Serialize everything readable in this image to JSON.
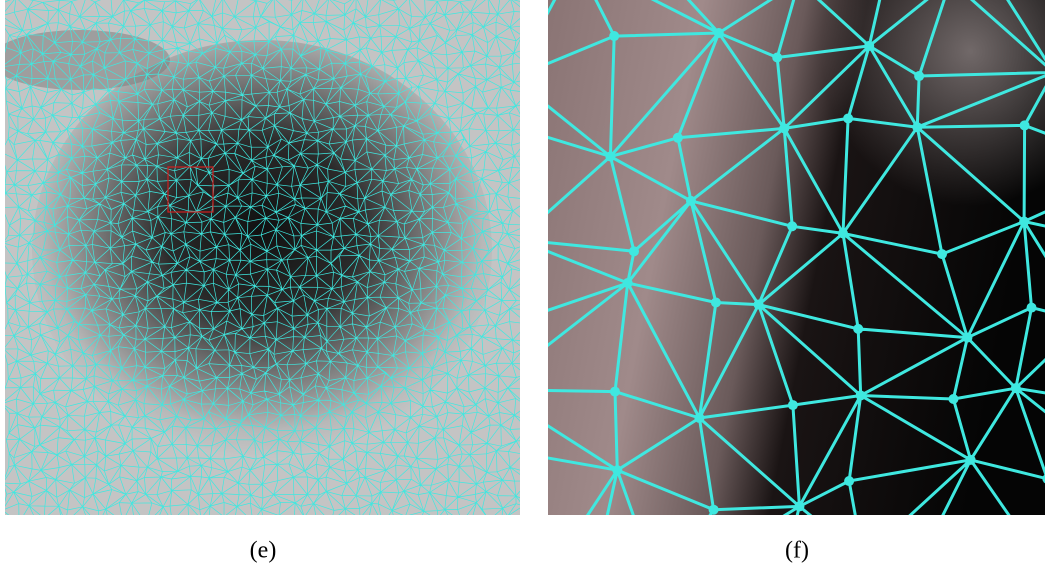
{
  "panels": [
    {
      "caption": "(e)"
    },
    {
      "caption": "(f)"
    }
  ]
}
